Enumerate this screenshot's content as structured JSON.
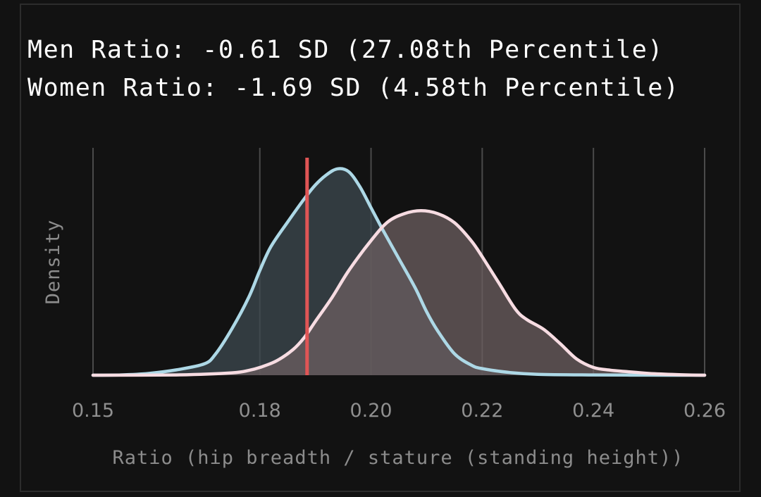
{
  "chart_data": {
    "type": "area",
    "title_lines": [
      "Men Ratio: -0.61 SD (27.08th Percentile)",
      "Women Ratio: -1.69 SD (4.58th Percentile)"
    ],
    "xlabel": "Ratio (hip breadth / stature (standing height))",
    "ylabel": "Density",
    "xlim": [
      0.15,
      0.26
    ],
    "ylim": [
      0,
      38
    ],
    "x_ticks": [
      0.15,
      0.18,
      0.2,
      0.22,
      0.24,
      0.26
    ],
    "x_tick_labels": [
      "0.15",
      "0.18",
      "0.20",
      "0.22",
      "0.24",
      "0.26"
    ],
    "grid": true,
    "series": [
      {
        "name": "",
        "color": "#add8e6",
        "fill_color": "#3e4a50",
        "x": [
          0.15,
          0.155,
          0.16,
          0.165,
          0.17,
          0.172,
          0.175,
          0.178,
          0.18,
          0.182,
          0.185,
          0.188,
          0.19,
          0.192,
          0.194,
          0.196,
          0.198,
          0.2,
          0.202,
          0.205,
          0.208,
          0.21,
          0.212,
          0.215,
          0.218,
          0.22,
          0.225,
          0.23,
          0.24,
          0.25,
          0.26
        ],
        "values": [
          0,
          0.05,
          0.3,
          0.9,
          1.9,
          3.5,
          7.8,
          13.0,
          17.5,
          21.5,
          25.6,
          29.5,
          31.8,
          33.5,
          34.5,
          34.0,
          31.5,
          28.0,
          24.5,
          19.5,
          14.5,
          10.6,
          7.4,
          3.6,
          1.7,
          1.1,
          0.45,
          0.15,
          0.05,
          0.01,
          0
        ]
      },
      {
        "name": "",
        "color": "#f7dce2",
        "fill_color": "#6c5f60",
        "x": [
          0.15,
          0.165,
          0.175,
          0.178,
          0.18,
          0.183,
          0.186,
          0.188,
          0.19,
          0.193,
          0.196,
          0.2,
          0.203,
          0.206,
          0.209,
          0.212,
          0.215,
          0.218,
          0.22,
          0.223,
          0.226,
          0.228,
          0.231,
          0.234,
          0.237,
          0.24,
          0.243,
          0.246,
          0.25,
          0.255,
          0.26
        ],
        "values": [
          0,
          0.05,
          0.4,
          0.8,
          1.3,
          2.4,
          4.3,
          6.3,
          9.0,
          13.0,
          17.5,
          22.5,
          25.6,
          27.0,
          27.5,
          27.0,
          25.5,
          22.5,
          19.8,
          15.4,
          11.0,
          9.3,
          7.7,
          5.3,
          2.7,
          1.3,
          0.85,
          0.6,
          0.3,
          0.1,
          0
        ]
      }
    ],
    "marker": {
      "x": 0.1885,
      "color": "#e05555"
    }
  }
}
